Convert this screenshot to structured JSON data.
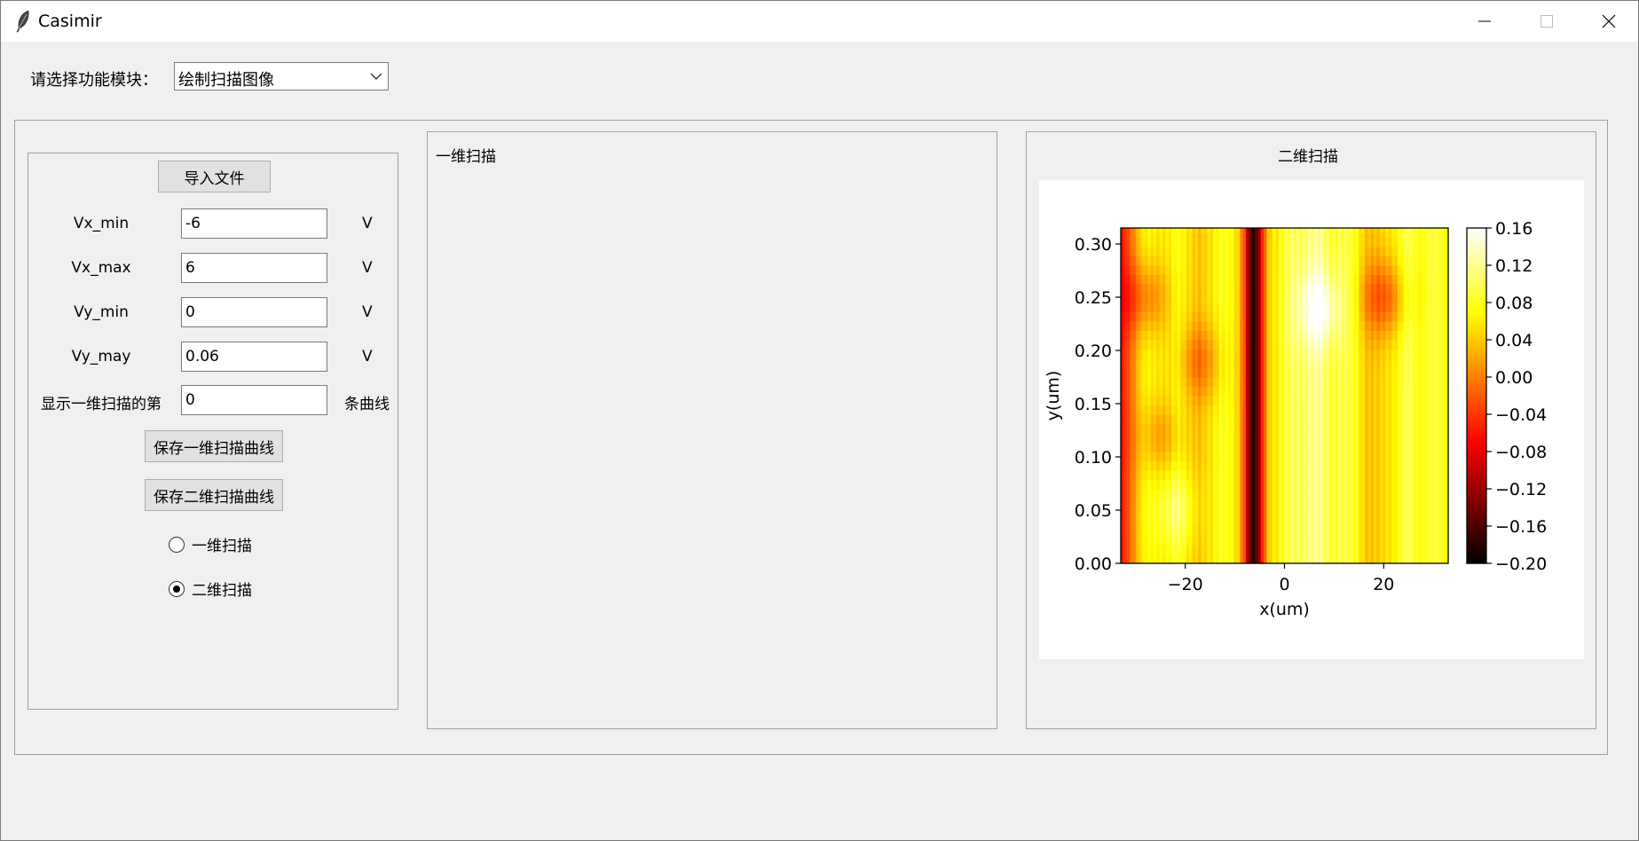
{
  "window": {
    "title": "Casimir",
    "icon": "feather-icon"
  },
  "module": {
    "label": "请选择功能模块：",
    "selected": "绘制扫描图像"
  },
  "left_panel": {
    "import_button": "导入文件",
    "fields": [
      {
        "label": "Vx_min",
        "value": "-6",
        "unit": "V"
      },
      {
        "label": "Vx_max",
        "value": "6",
        "unit": "V"
      },
      {
        "label": "Vy_min",
        "value": "0",
        "unit": "V"
      },
      {
        "label": "Vy_may",
        "value": "0.06",
        "unit": "V"
      },
      {
        "label": "显示一维扫描的第",
        "value": "0",
        "unit": "条曲线"
      }
    ],
    "save_1d_button": "保存一维扫描曲线",
    "save_2d_button": "保存二维扫描曲线",
    "radios": [
      {
        "label": "一维扫描",
        "checked": false
      },
      {
        "label": "二维扫描",
        "checked": true
      }
    ]
  },
  "mid_panel": {
    "title": "一维扫描"
  },
  "right_panel": {
    "title": "二维扫描"
  },
  "chart_data": {
    "type": "heatmap",
    "title": "",
    "xlabel": "x(um)",
    "ylabel": "y(um)",
    "xlim": [
      -33,
      33
    ],
    "ylim": [
      0,
      0.315
    ],
    "xticks": [
      -20,
      0,
      20
    ],
    "xtick_labels": [
      "−20",
      "0",
      "20"
    ],
    "yticks": [
      0.0,
      0.05,
      0.1,
      0.15,
      0.2,
      0.25,
      0.3
    ],
    "ytick_labels": [
      "0.00",
      "0.05",
      "0.10",
      "0.15",
      "0.20",
      "0.25",
      "0.30"
    ],
    "colormap": "hot",
    "colorbar": {
      "range": [
        -0.2,
        0.16
      ],
      "ticks": [
        0.16,
        0.12,
        0.08,
        0.04,
        0.0,
        -0.04,
        -0.08,
        -0.12,
        -0.16,
        -0.2
      ],
      "tick_labels": [
        "0.16",
        "0.12",
        "0.08",
        "0.04",
        "0.00",
        "−0.04",
        "−0.08",
        "−0.12",
        "−0.16",
        "−0.20"
      ]
    },
    "column_profile": {
      "x": [
        -33,
        -31,
        -29,
        -27,
        -25,
        -23,
        -21,
        -19,
        -17,
        -15,
        -13,
        -11,
        -9,
        -8,
        -7,
        -6,
        -5,
        -4,
        -3,
        -1,
        1,
        3,
        5,
        7,
        9,
        11,
        13,
        15,
        17,
        19,
        21,
        23,
        25,
        27,
        29,
        31,
        33
      ],
      "value": [
        -0.07,
        0.0,
        0.05,
        0.06,
        0.07,
        0.06,
        0.07,
        0.06,
        0.03,
        0.05,
        0.09,
        0.07,
        0.03,
        -0.03,
        -0.14,
        -0.18,
        -0.12,
        -0.02,
        0.05,
        0.08,
        0.09,
        0.1,
        0.12,
        0.11,
        0.09,
        0.1,
        0.08,
        0.07,
        0.04,
        0.03,
        0.06,
        0.08,
        0.09,
        0.08,
        0.09,
        0.08,
        0.07
      ]
    },
    "hotspots": [
      {
        "x": -28,
        "y": 0.25,
        "delta": -0.06
      },
      {
        "x": 20,
        "y": 0.25,
        "delta": -0.07
      },
      {
        "x": -17,
        "y": 0.19,
        "delta": -0.05
      },
      {
        "x": -25,
        "y": 0.12,
        "delta": -0.04
      },
      {
        "x": 7,
        "y": 0.24,
        "delta": 0.06
      },
      {
        "x": -22,
        "y": 0.05,
        "delta": 0.04
      }
    ]
  }
}
